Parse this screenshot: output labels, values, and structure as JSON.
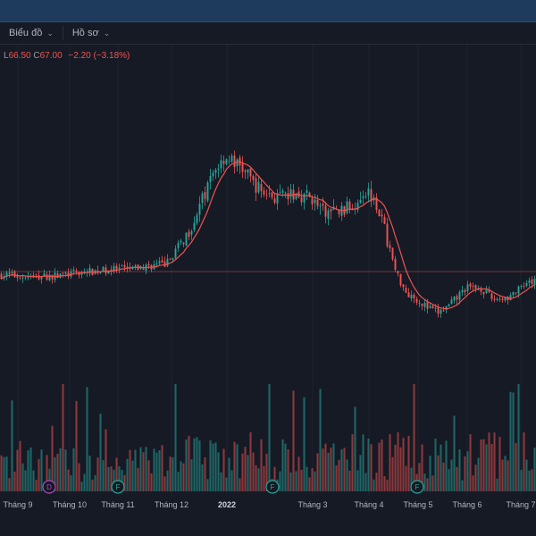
{
  "toolbar": {
    "chart_label": "Biểu đồ",
    "profile_label": "Hồ sơ"
  },
  "legend": {
    "low_prefix": "L",
    "low_value": "66.50",
    "close_prefix": "C",
    "close_value": "67.00",
    "change": "−2.20 (−3.18%)"
  },
  "colors": {
    "up": "#26a69a",
    "down": "#ef5350",
    "ma": "#ef5350",
    "background": "#161a25"
  },
  "chart_data": {
    "type": "candlestick",
    "moving_average": true,
    "price_anchors": [
      {
        "t": 0,
        "p": 62.5
      },
      {
        "t": 0.05,
        "p": 62.0
      },
      {
        "t": 0.1,
        "p": 62.2
      },
      {
        "t": 0.15,
        "p": 63.0
      },
      {
        "t": 0.2,
        "p": 63.6
      },
      {
        "t": 0.25,
        "p": 63.8
      },
      {
        "t": 0.28,
        "p": 64.5
      },
      {
        "t": 0.31,
        "p": 65.0
      },
      {
        "t": 0.35,
        "p": 72.0
      },
      {
        "t": 0.38,
        "p": 80.0
      },
      {
        "t": 0.4,
        "p": 86.0
      },
      {
        "t": 0.42,
        "p": 89.0
      },
      {
        "t": 0.45,
        "p": 86.5
      },
      {
        "t": 0.48,
        "p": 82.0
      },
      {
        "t": 0.5,
        "p": 80.5
      },
      {
        "t": 0.52,
        "p": 79.5
      },
      {
        "t": 0.55,
        "p": 80.5
      },
      {
        "t": 0.58,
        "p": 80.0
      },
      {
        "t": 0.6,
        "p": 76.5
      },
      {
        "t": 0.63,
        "p": 76.5
      },
      {
        "t": 0.66,
        "p": 78.0
      },
      {
        "t": 0.68,
        "p": 81.5
      },
      {
        "t": 0.7,
        "p": 80.0
      },
      {
        "t": 0.72,
        "p": 72.0
      },
      {
        "t": 0.74,
        "p": 63.0
      },
      {
        "t": 0.76,
        "p": 58.5
      },
      {
        "t": 0.78,
        "p": 57.0
      },
      {
        "t": 0.8,
        "p": 55.0
      },
      {
        "t": 0.82,
        "p": 54.0
      },
      {
        "t": 0.84,
        "p": 55.5
      },
      {
        "t": 0.87,
        "p": 59.5
      },
      {
        "t": 0.9,
        "p": 59.5
      },
      {
        "t": 0.92,
        "p": 57.0
      },
      {
        "t": 0.95,
        "p": 57.5
      },
      {
        "t": 0.97,
        "p": 59.0
      },
      {
        "t": 1,
        "p": 61.0
      }
    ],
    "reference_price": 63.2,
    "x_labels": [
      "Tháng 9",
      "Tháng 10",
      "Tháng 11",
      "Tháng 12",
      "2022",
      "Tháng 3",
      "Tháng 4",
      "Tháng 5",
      "Tháng 6",
      "Tháng 7"
    ],
    "events": [
      {
        "label": "D",
        "color": "#ab47bc"
      },
      {
        "label": "F",
        "color": "#26a69a"
      },
      {
        "label": "F",
        "color": "#26a69a"
      },
      {
        "label": "F",
        "color": "#26a69a"
      }
    ]
  }
}
